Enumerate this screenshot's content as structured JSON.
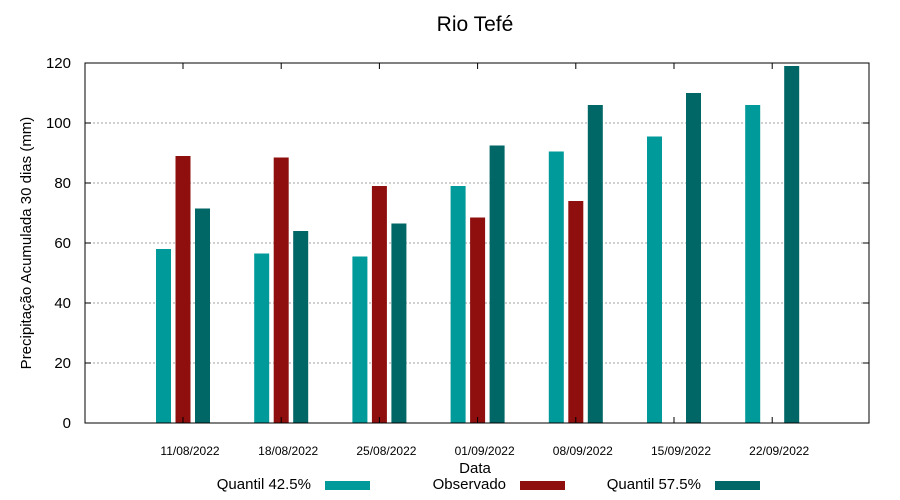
{
  "chart_data": {
    "type": "bar",
    "title": "Rio Tefé",
    "xlabel": "Data",
    "ylabel": "Precipitação Acumulada 30 dias (mm)",
    "ylim": [
      0,
      120
    ],
    "yticks": [
      0,
      20,
      40,
      60,
      80,
      100,
      120
    ],
    "grid": true,
    "legend_position": "bottom",
    "categories": [
      "11/08/2022",
      "18/08/2022",
      "25/08/2022",
      "01/09/2022",
      "08/09/2022",
      "15/09/2022",
      "22/09/2022"
    ],
    "series": [
      {
        "name": "Quantil 42.5%",
        "color": "#009a9a",
        "values": [
          58,
          56.5,
          55.5,
          79,
          90.5,
          95.5,
          106
        ]
      },
      {
        "name": "Observado",
        "color": "#8f0f0f",
        "values": [
          89,
          88.5,
          79,
          68.5,
          74,
          null,
          null
        ]
      },
      {
        "name": "Quantil 57.5%",
        "color": "#006666",
        "values": [
          71.5,
          64,
          66.5,
          92.5,
          106,
          110,
          119
        ]
      }
    ]
  }
}
